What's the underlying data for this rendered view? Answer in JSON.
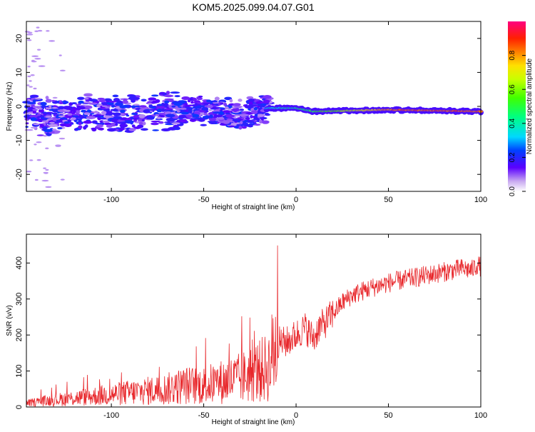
{
  "title": "KOM5.2025.099.04.07.G01",
  "chart_data": [
    {
      "type": "heatmap",
      "xlabel": "Height of straight line (km)",
      "ylabel": "Frequency (Hz)",
      "xlim": [
        -146,
        100
      ],
      "ylim": [
        -25,
        25
      ],
      "xticks": [
        -100,
        -50,
        0,
        50,
        100
      ],
      "yticks": [
        -20,
        -10,
        0,
        10,
        20
      ],
      "colorbar": {
        "label": "Normalized spectral amplitude",
        "range": [
          0,
          1
        ],
        "ticks": [
          0,
          0.2,
          0.4,
          0.6,
          0.8
        ]
      },
      "grid": false,
      "ridge": {
        "description_values": [
          {
            "x": -140,
            "y": -3
          },
          {
            "x": -100,
            "y": -2
          },
          {
            "x": -60,
            "y": -1
          },
          {
            "x": -30,
            "y": -2.5
          },
          {
            "x": -15,
            "y": -0.5
          },
          {
            "x": 0,
            "y": -0.5
          },
          {
            "x": 10,
            "y": -1.5
          },
          {
            "x": 50,
            "y": -1
          },
          {
            "x": 100,
            "y": -1.5
          }
        ]
      }
    },
    {
      "type": "line",
      "xlabel": "Height of straight line (km)",
      "ylabel": "SNR (v/v)",
      "xlim": [
        -146,
        100
      ],
      "ylim": [
        0,
        480
      ],
      "xticks": [
        -100,
        -50,
        0,
        50,
        100
      ],
      "yticks": [
        0,
        100,
        200,
        300,
        400
      ],
      "color": "#e8282c",
      "grid": false,
      "series": [
        {
          "x": [
            -146,
            -140,
            -130,
            -120,
            -110,
            -100,
            -90,
            -80,
            -70,
            -60,
            -50,
            -40,
            -30,
            -25,
            -20,
            -15,
            -12,
            -10,
            -5,
            0,
            5,
            8,
            10,
            12,
            15,
            20,
            25,
            30,
            40,
            50,
            60,
            70,
            80,
            90,
            95,
            98,
            100
          ],
          "y": [
            10,
            15,
            20,
            25,
            30,
            35,
            40,
            45,
            50,
            60,
            60,
            70,
            80,
            90,
            100,
            110,
            160,
            180,
            180,
            200,
            220,
            200,
            190,
            220,
            230,
            260,
            290,
            310,
            330,
            345,
            355,
            365,
            375,
            385,
            380,
            395,
            390
          ]
        }
      ]
    }
  ]
}
